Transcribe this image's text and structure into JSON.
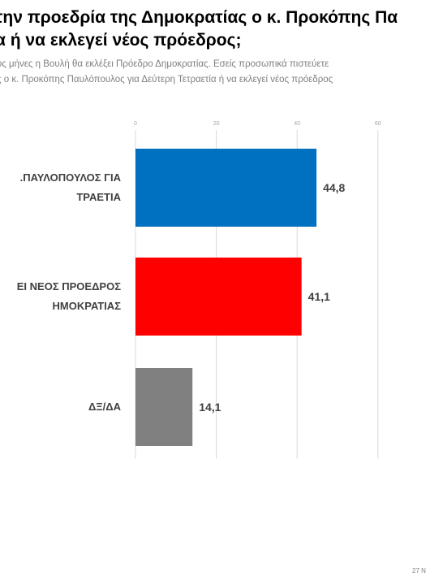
{
  "header": {
    "title_line1": "την προεδρία της Δημοκρατίας ο κ. Προκόπης Πα",
    "title_line2": "α ή να εκλεγεί νέος πρόεδρος;",
    "subtitle_line1": "ύς μήνες η Βουλή θα εκλέξει Πρόεδρο Δημοκρατίας. Εσείς προσωπικά πιστεύετε",
    "subtitle_line2": "ς ο κ. Προκόπης Παυλόπουλος για Δεύτερη Τετραετία ή να εκλεγεί νέος πρόεδρος",
    "paren": ")"
  },
  "footer": {
    "date_text": "27 Ν"
  },
  "colors": {
    "bar1": "#0070c0",
    "bar2": "#ff0000",
    "bar3": "#808080"
  },
  "chart_data": {
    "type": "bar",
    "orientation": "horizontal",
    "categories": [
      [
        ".ΠΑΥΛΟΠΟΥΛΟΣ ΓΙΑ",
        "ΤΡΑΕΤΙΑ"
      ],
      [
        "ΕΙ ΝΕΟΣ ΠΡΟΕΔΡΟΣ",
        "ΗΜΟΚΡΑΤΙΑΣ"
      ],
      [
        "ΔΞ/ΔΑ"
      ]
    ],
    "values": [
      44.8,
      41.1,
      14.1
    ],
    "value_labels": [
      "44,8",
      "41,1",
      "14,1"
    ],
    "xlim": [
      0,
      60
    ],
    "xticks": [
      0,
      20,
      40,
      60
    ],
    "xtick_labels": [
      "0",
      "20",
      "40",
      "60"
    ],
    "grid": true
  }
}
